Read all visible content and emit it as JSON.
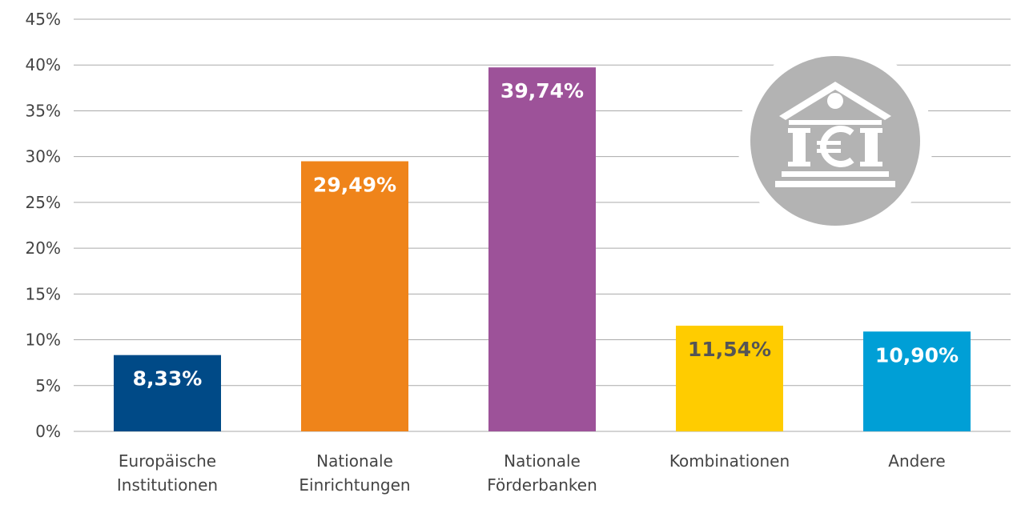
{
  "chart_data": {
    "type": "bar",
    "categories": [
      [
        "Europäische",
        "Institutionen"
      ],
      [
        "Nationale",
        "Einrichtungen"
      ],
      [
        "Nationale",
        "Förderbanken"
      ],
      [
        "Kombinationen"
      ],
      [
        "Andere"
      ]
    ],
    "values": [
      8.33,
      29.49,
      39.74,
      11.54,
      10.9
    ],
    "value_labels": [
      "8,33%",
      "29,49%",
      "39,74%",
      "11,54%",
      "10,90%"
    ],
    "colors": [
      "#004a87",
      "#ef841a",
      "#9d5299",
      "#ffcc00",
      "#009fd6"
    ],
    "label_colors": [
      "#ffffff",
      "#ffffff",
      "#ffffff",
      "#555555",
      "#ffffff"
    ],
    "ylim": [
      0,
      45
    ],
    "yticks": [
      {
        "value": 0,
        "label": "0%"
      },
      {
        "value": 5,
        "label": "5%"
      },
      {
        "value": 10,
        "label": "10%"
      },
      {
        "value": 15,
        "label": "15%"
      },
      {
        "value": 20,
        "label": "20%"
      },
      {
        "value": 25,
        "label": "25%"
      },
      {
        "value": 30,
        "label": "30%"
      },
      {
        "value": 35,
        "label": "35%"
      },
      {
        "value": 40,
        "label": "40%"
      },
      {
        "value": 45,
        "label": "45%"
      }
    ],
    "grid": true
  }
}
